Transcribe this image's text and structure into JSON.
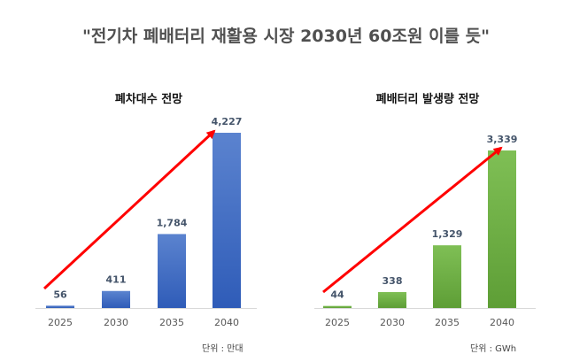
{
  "title": "\"전기차 폐배터리 재활용 시장 2030년 60조원 이를 듯\"",
  "chart_data": [
    {
      "type": "bar",
      "title": "폐차대수 전망",
      "categories": [
        "2025",
        "2030",
        "2035",
        "2040"
      ],
      "values": [
        56,
        411,
        1784,
        4227
      ],
      "value_labels": [
        "56",
        "411",
        "1,784",
        "4,227"
      ],
      "unit_note": "단위 : 만대",
      "ylim": [
        0,
        4500
      ],
      "bar_color": "#4472C4",
      "trend_arrow_color": "#FF0000",
      "grid": false,
      "legend": "none"
    },
    {
      "type": "bar",
      "title": "폐배터리 발생량 전망",
      "categories": [
        "2025",
        "2030",
        "2035",
        "2040"
      ],
      "values": [
        44,
        338,
        1329,
        3339
      ],
      "value_labels": [
        "44",
        "338",
        "1,329",
        "3,339"
      ],
      "unit_note": "단위 : GWh",
      "ylim": [
        0,
        3900
      ],
      "bar_color": "#70AD47",
      "trend_arrow_color": "#FF0000",
      "grid": false,
      "legend": "none"
    }
  ]
}
